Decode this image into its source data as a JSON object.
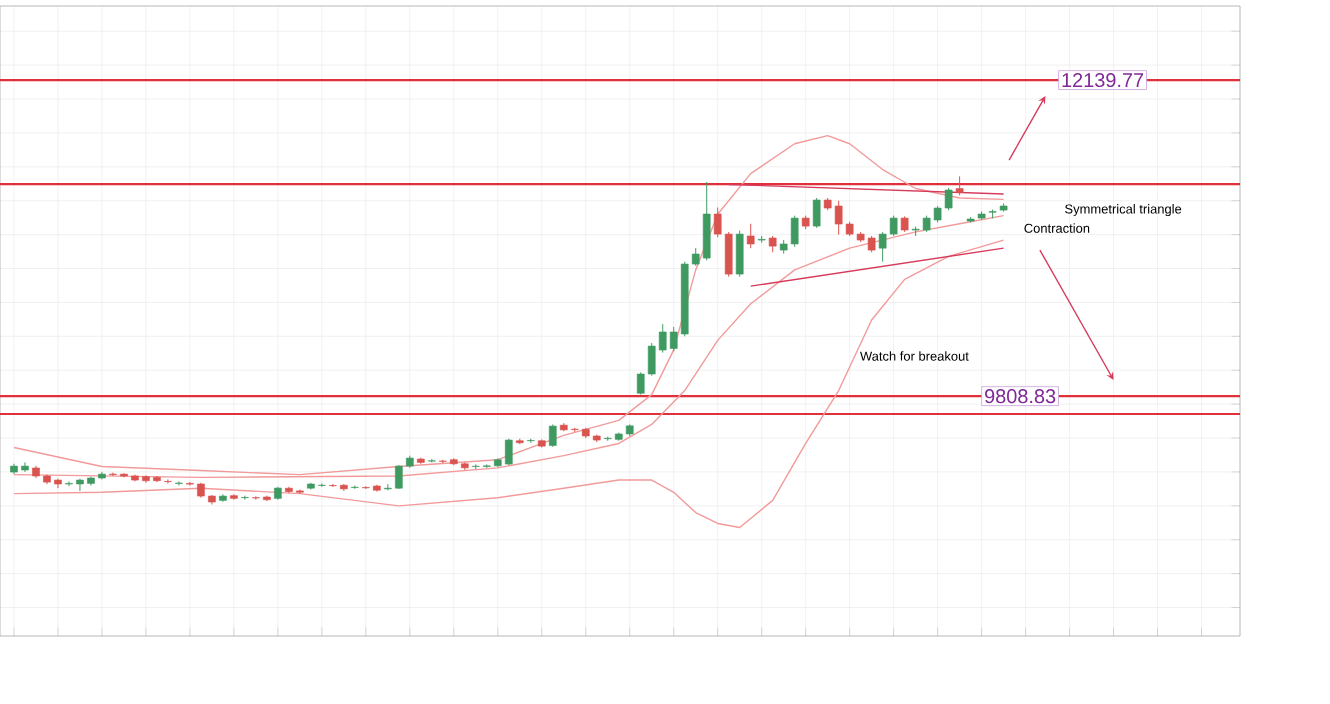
{
  "chart_data": {
    "type": "candlestick",
    "categories": [
      null,
      null,
      null,
      null,
      null,
      null,
      null,
      null,
      null,
      null,
      null,
      null,
      null,
      null,
      null,
      null,
      null,
      null,
      null,
      null,
      null,
      null,
      null,
      null,
      null,
      null,
      null,
      null,
      null,
      null,
      null,
      null,
      null,
      null,
      null,
      null,
      null,
      null,
      null,
      null,
      null,
      null,
      null,
      null,
      null,
      null,
      null,
      null,
      null,
      null,
      null,
      null,
      null,
      null,
      null,
      null,
      null,
      null,
      null,
      null,
      null,
      null,
      null,
      null,
      null,
      null,
      null,
      null,
      null,
      null,
      null,
      null,
      null,
      null,
      null,
      null,
      null,
      null,
      null,
      null,
      null,
      null,
      null,
      null,
      null,
      null,
      null,
      null,
      null,
      null,
      null
    ],
    "ohlc": [
      [
        9249,
        9310,
        9235,
        9293
      ],
      [
        9264,
        9320,
        9250,
        9293
      ],
      [
        9279,
        9295,
        9205,
        9220
      ],
      [
        9220,
        9230,
        9160,
        9175
      ],
      [
        9190,
        9200,
        9130,
        9161
      ],
      [
        9161,
        9180,
        9145,
        9165
      ],
      [
        9161,
        9200,
        9110,
        9190
      ],
      [
        9165,
        9215,
        9150,
        9205
      ],
      [
        9205,
        9250,
        9195,
        9234
      ],
      [
        9234,
        9245,
        9220,
        9230
      ],
      [
        9234,
        9240,
        9210,
        9220
      ],
      [
        9220,
        9230,
        9180,
        9190
      ],
      [
        9215,
        9225,
        9170,
        9185
      ],
      [
        9210,
        9220,
        9175,
        9185
      ],
      [
        9180,
        9195,
        9165,
        9178
      ],
      [
        9165,
        9180,
        9150,
        9168
      ],
      [
        9165,
        9175,
        9150,
        9160
      ],
      [
        9161,
        9170,
        9060,
        9072
      ],
      [
        9072,
        9080,
        9010,
        9028
      ],
      [
        9040,
        9085,
        9030,
        9072
      ],
      [
        9075,
        9085,
        9045,
        9055
      ],
      [
        9060,
        9075,
        9045,
        9062
      ],
      [
        9060,
        9070,
        9045,
        9058
      ],
      [
        9065,
        9075,
        9035,
        9045
      ],
      [
        9055,
        9140,
        9045,
        9131
      ],
      [
        9130,
        9140,
        9095,
        9105
      ],
      [
        9110,
        9120,
        9090,
        9100
      ],
      [
        9130,
        9170,
        9120,
        9161
      ],
      [
        9150,
        9165,
        9140,
        9152
      ],
      [
        9150,
        9160,
        9140,
        9148
      ],
      [
        9152,
        9160,
        9110,
        9125
      ],
      [
        9135,
        9150,
        9125,
        9137
      ],
      [
        9135,
        9145,
        9125,
        9133
      ],
      [
        9146,
        9155,
        9105,
        9115
      ],
      [
        9125,
        9160,
        9115,
        9130
      ],
      [
        9130,
        9300,
        9125,
        9293
      ],
      [
        9293,
        9370,
        9280,
        9352
      ],
      [
        9345,
        9355,
        9310,
        9320
      ],
      [
        9330,
        9345,
        9320,
        9332
      ],
      [
        9330,
        9340,
        9315,
        9328
      ],
      [
        9340,
        9350,
        9300,
        9310
      ],
      [
        9310,
        9320,
        9265,
        9280
      ],
      [
        9290,
        9305,
        9270,
        9292
      ],
      [
        9290,
        9305,
        9280,
        9295
      ],
      [
        9295,
        9350,
        9285,
        9340
      ],
      [
        9308,
        9495,
        9300,
        9485
      ],
      [
        9480,
        9495,
        9455,
        9465
      ],
      [
        9480,
        9495,
        9465,
        9482
      ],
      [
        9480,
        9490,
        9430,
        9440
      ],
      [
        9445,
        9600,
        9435,
        9588
      ],
      [
        9595,
        9610,
        9550,
        9560
      ],
      [
        9565,
        9575,
        9545,
        9562
      ],
      [
        9565,
        9575,
        9500,
        9515
      ],
      [
        9515,
        9525,
        9470,
        9485
      ],
      [
        9495,
        9510,
        9480,
        9498
      ],
      [
        9490,
        9540,
        9480,
        9530
      ],
      [
        9530,
        9600,
        9515,
        9590
      ],
      [
        9830,
        9985,
        9820,
        9972
      ],
      [
        9972,
        10200,
        9960,
        10178
      ],
      [
        10149,
        10340,
        10130,
        10282
      ],
      [
        10160,
        10320,
        10140,
        10282
      ],
      [
        10267,
        10800,
        10250,
        10783
      ],
      [
        10783,
        10900,
        10770,
        10857
      ],
      [
        10827,
        11388,
        10810,
        11152
      ],
      [
        11152,
        11200,
        10980,
        11004
      ],
      [
        11004,
        11020,
        10690,
        10709
      ],
      [
        10709,
        11030,
        10690,
        11004
      ],
      [
        10990,
        11080,
        10900,
        10931
      ],
      [
        10960,
        10990,
        10940,
        10965
      ],
      [
        10975,
        10990,
        10870,
        10915
      ],
      [
        10886,
        10960,
        10860,
        10931
      ],
      [
        10931,
        11140,
        10910,
        11122
      ],
      [
        11122,
        11140,
        11040,
        11063
      ],
      [
        11063,
        11270,
        11050,
        11255
      ],
      [
        11255,
        11270,
        11180,
        11196
      ],
      [
        11211,
        11250,
        11000,
        11078
      ],
      [
        11078,
        11095,
        10990,
        11004
      ],
      [
        11004,
        11020,
        10945,
        10960
      ],
      [
        10975,
        10990,
        10870,
        10886
      ],
      [
        10900,
        11020,
        10800,
        11004
      ],
      [
        11004,
        11140,
        10990,
        11122
      ],
      [
        11122,
        11135,
        11020,
        11034
      ],
      [
        11034,
        11060,
        10990,
        11040
      ],
      [
        11034,
        11140,
        11020,
        11122
      ],
      [
        11108,
        11210,
        11090,
        11196
      ],
      [
        11196,
        11345,
        11180,
        11329
      ],
      [
        11340,
        11430,
        11290,
        11310
      ],
      [
        11100,
        11130,
        11090,
        11115
      ],
      [
        11122,
        11170,
        11110,
        11152
      ],
      [
        11165,
        11185,
        11120,
        11170
      ],
      [
        11181,
        11230,
        11170,
        11211
      ]
    ],
    "series": [
      {
        "type": "line",
        "color": "#f29a9a",
        "values": [
          9430,
          null,
          null,
          null,
          null,
          null,
          null,
          null,
          9290,
          null,
          null,
          null,
          null,
          null,
          null,
          null,
          null,
          9260,
          null,
          null,
          null,
          null,
          null,
          null,
          null,
          null,
          9230,
          null,
          null,
          null,
          null,
          null,
          null,
          null,
          null,
          9290,
          null,
          null,
          null,
          null,
          null,
          null,
          null,
          null,
          9340,
          null,
          null,
          null,
          null,
          null,
          9520,
          null,
          null,
          null,
          null,
          9630,
          null,
          null,
          9820,
          null,
          10150,
          null,
          10740,
          null,
          11150,
          null,
          null,
          11450,
          null,
          null,
          null,
          11670,
          null,
          null,
          11730,
          null,
          11670,
          null,
          null,
          11480,
          null,
          null,
          11340,
          null,
          null,
          null,
          11270,
          null,
          null,
          null,
          11260
        ]
      },
      {
        "type": "line",
        "color": "#f29a9a",
        "values": [
          9230,
          null,
          null,
          null,
          null,
          null,
          null,
          null,
          null,
          null,
          null,
          null,
          null,
          null,
          null,
          null,
          null,
          9210,
          null,
          null,
          null,
          null,
          null,
          null,
          null,
          null,
          null,
          null,
          null,
          null,
          null,
          null,
          null,
          null,
          null,
          9220,
          null,
          null,
          null,
          null,
          null,
          null,
          null,
          null,
          9280,
          null,
          null,
          null,
          null,
          null,
          9370,
          null,
          null,
          null,
          null,
          9460,
          null,
          null,
          9600,
          null,
          null,
          9850,
          null,
          null,
          10220,
          null,
          null,
          10490,
          null,
          null,
          null,
          10740,
          null,
          null,
          null,
          null,
          10900,
          null,
          null,
          null,
          null,
          null,
          11020,
          null,
          null,
          null,
          11080,
          null,
          null,
          null,
          11140
        ]
      },
      {
        "type": "line",
        "color": "#f29a9a",
        "values": [
          9090,
          null,
          null,
          null,
          null,
          null,
          null,
          null,
          9100,
          null,
          null,
          null,
          null,
          null,
          null,
          null,
          null,
          9130,
          null,
          null,
          null,
          null,
          null,
          null,
          null,
          null,
          9090,
          null,
          null,
          null,
          null,
          null,
          null,
          null,
          null,
          9000,
          null,
          null,
          null,
          null,
          null,
          null,
          null,
          null,
          9060,
          null,
          null,
          null,
          null,
          null,
          9130,
          null,
          null,
          null,
          null,
          9190,
          null,
          null,
          9190,
          null,
          9100,
          null,
          8950,
          null,
          8870,
          null,
          8840,
          null,
          null,
          9040,
          null,
          null,
          9460,
          null,
          null,
          9850,
          null,
          null,
          10370,
          null,
          null,
          10670,
          null,
          null,
          null,
          10840,
          null,
          null,
          null,
          null,
          10960
        ]
      },
      {
        "type": "line",
        "color": "#d63a5a",
        "values": [
          null,
          null,
          null,
          null,
          null,
          null,
          null,
          null,
          null,
          null,
          null,
          null,
          null,
          null,
          null,
          null,
          null,
          null,
          null,
          null,
          null,
          null,
          null,
          null,
          null,
          null,
          null,
          null,
          null,
          null,
          null,
          null,
          null,
          null,
          null,
          null,
          null,
          null,
          null,
          null,
          null,
          null,
          null,
          null,
          null,
          null,
          null,
          null,
          null,
          null,
          null,
          null,
          null,
          null,
          null,
          null,
          null,
          null,
          null,
          null,
          null,
          null,
          null,
          null,
          null,
          11370,
          null,
          null,
          null,
          null,
          null,
          null,
          null,
          null,
          null,
          null,
          null,
          null,
          null,
          null,
          null,
          null,
          null,
          null,
          null,
          null,
          null,
          null,
          null,
          null,
          11300
        ]
      },
      {
        "type": "line",
        "color": "#d63a5a",
        "values": [
          null,
          null,
          null,
          null,
          null,
          null,
          null,
          null,
          null,
          null,
          null,
          null,
          null,
          null,
          null,
          null,
          null,
          null,
          null,
          null,
          null,
          null,
          null,
          null,
          null,
          null,
          null,
          null,
          null,
          null,
          null,
          null,
          null,
          null,
          null,
          null,
          null,
          null,
          null,
          null,
          null,
          null,
          null,
          null,
          null,
          null,
          null,
          null,
          null,
          null,
          null,
          null,
          null,
          null,
          null,
          null,
          null,
          null,
          null,
          null,
          null,
          null,
          null,
          null,
          null,
          null,
          null,
          10620,
          null,
          null,
          null,
          null,
          null,
          null,
          null,
          null,
          null,
          null,
          null,
          null,
          null,
          null,
          null,
          null,
          null,
          null,
          null,
          null,
          null,
          null,
          10900
        ]
      }
    ],
    "ref_lines": [
      {
        "axis": "y",
        "value": 12139.77,
        "label": "12139.77",
        "color": "#e0303a"
      },
      {
        "axis": "y",
        "value": 11373,
        "color": "#e0303a"
      },
      {
        "axis": "y",
        "value": 9808.83,
        "label": "9808.83",
        "color": "#e0303a"
      },
      {
        "axis": "y",
        "value": 9677,
        "color": "#e0303a"
      }
    ],
    "annotations": [
      "Symmetrical triangle",
      "Contraction",
      "Watch for breakout"
    ],
    "ylim": [
      8040,
      12686
    ],
    "yticks": [
      {
        "value": 8250,
        "label": null
      },
      {
        "value": 8500,
        "label": null
      },
      {
        "value": 8750,
        "label": null
      },
      {
        "value": 9000,
        "label": null
      },
      {
        "value": 9250,
        "label": null
      },
      {
        "value": 9500,
        "label": null
      },
      {
        "value": 9750,
        "label": null
      },
      {
        "value": 10000,
        "label": null
      },
      {
        "value": 10250,
        "label": null
      },
      {
        "value": 10500,
        "label": null
      },
      {
        "value": 10750,
        "label": null
      },
      {
        "value": 11000,
        "label": null
      },
      {
        "value": 11250,
        "label": null
      },
      {
        "value": 11500,
        "label": null
      },
      {
        "value": 11750,
        "label": null
      },
      {
        "value": 12000,
        "label": null
      },
      {
        "value": 12250,
        "label": null
      },
      {
        "value": 12500,
        "label": null
      }
    ],
    "grid": true
  }
}
